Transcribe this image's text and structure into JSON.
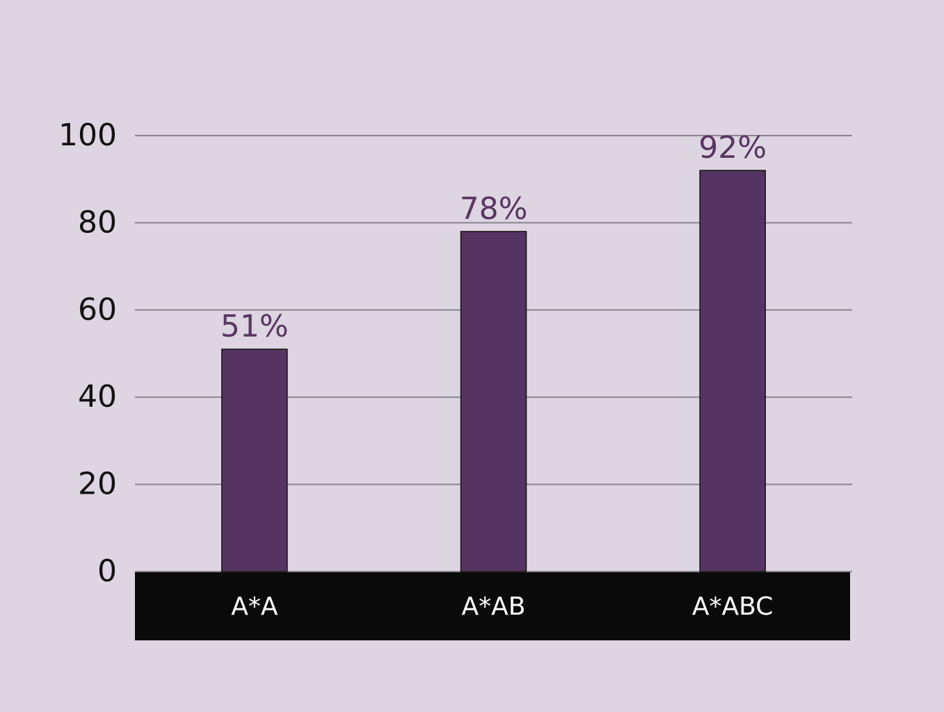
{
  "chart_data": {
    "type": "bar",
    "categories": [
      "A*A",
      "A*AB",
      "A*ABC"
    ],
    "values": [
      51,
      78,
      92
    ],
    "value_labels": [
      "51%",
      "78%",
      "92%"
    ],
    "color": "#563461",
    "ylim": [
      0,
      100
    ],
    "yticks": [
      0,
      20,
      40,
      60,
      80,
      100
    ],
    "grid": true
  }
}
